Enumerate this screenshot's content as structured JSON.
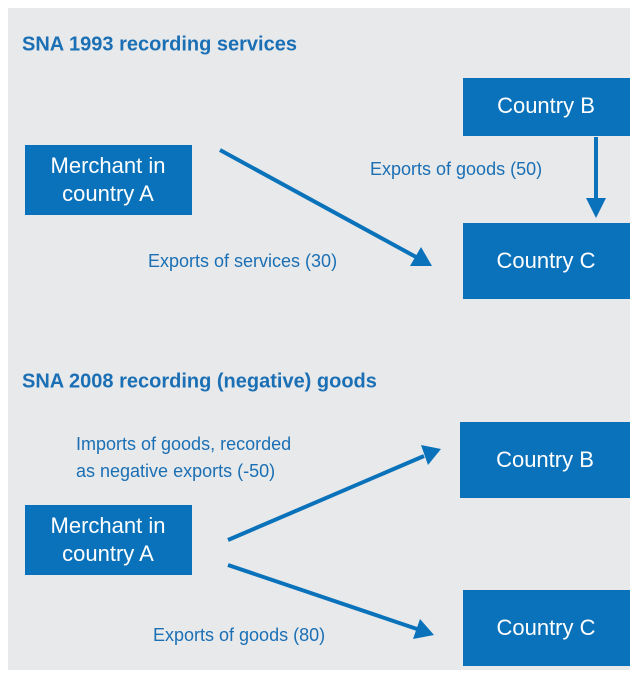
{
  "sections": [
    {
      "title": "SNA 1993 recording services",
      "nodes": [
        {
          "lines": [
            "Country B"
          ]
        },
        {
          "lines": [
            "Merchant in",
            "country A"
          ]
        },
        {
          "lines": [
            "Country C"
          ]
        }
      ],
      "edges": [
        {
          "lines": [
            "Exports of goods (50)"
          ]
        },
        {
          "lines": [
            "Exports of services (30)"
          ]
        }
      ]
    },
    {
      "title": "SNA 2008 recording (negative) goods",
      "nodes": [
        {
          "lines": [
            "Country B"
          ]
        },
        {
          "lines": [
            "Merchant in",
            "country A"
          ]
        },
        {
          "lines": [
            "Country C"
          ]
        }
      ],
      "edges": [
        {
          "lines": [
            "Imports of goods, recorded",
            "as negative exports (-50)"
          ]
        },
        {
          "lines": [
            "Exports of goods (80)"
          ]
        }
      ]
    }
  ]
}
